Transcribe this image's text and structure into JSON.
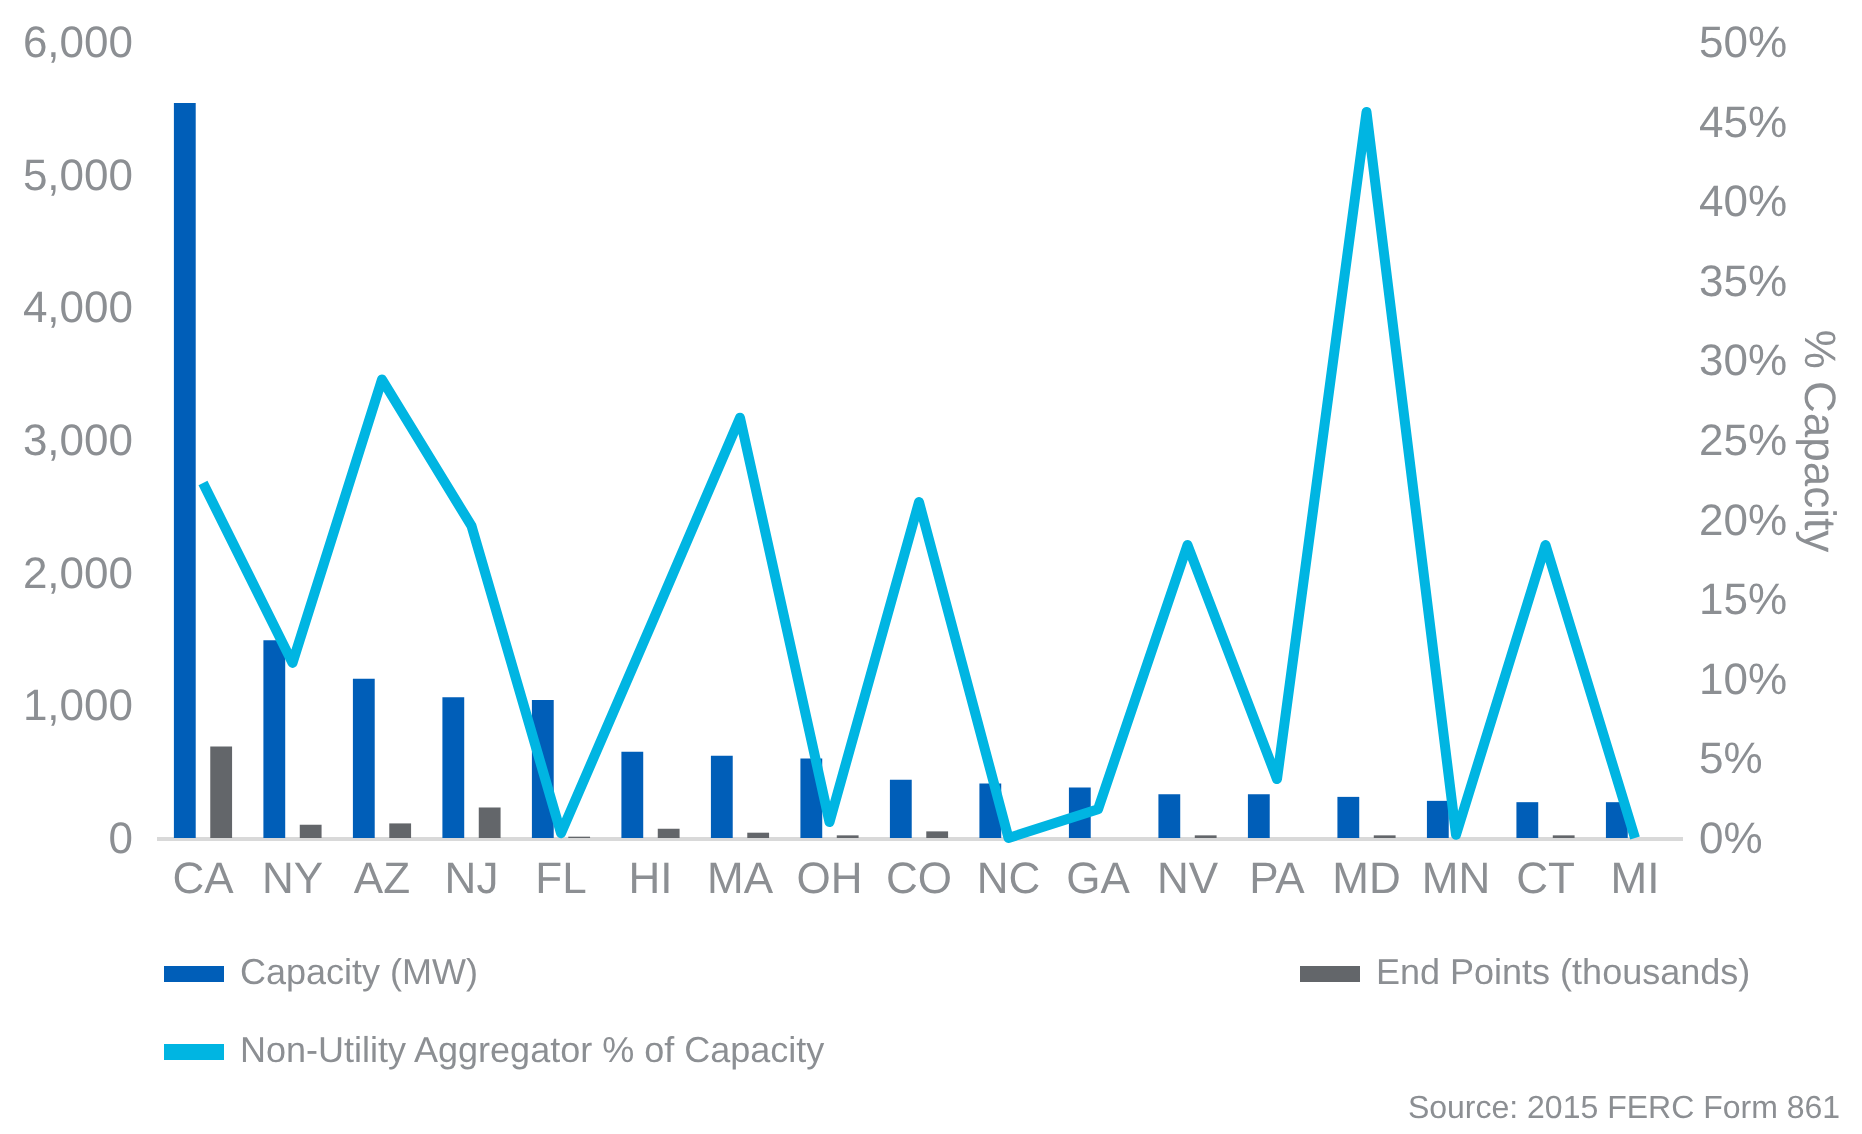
{
  "chart_data": {
    "type": "bar",
    "ylabel": null,
    "y2label": "% Capacity",
    "categories": [
      "CA",
      "NY",
      "AZ",
      "NJ",
      "FL",
      "HI",
      "MA",
      "OH",
      "CO",
      "NC",
      "GA",
      "NV",
      "PA",
      "MD",
      "MN",
      "CT",
      "MI"
    ],
    "series": [
      {
        "name": "Capacity (MW)",
        "color": "#005eb8",
        "values": [
          5540,
          1490,
          1200,
          1060,
          1040,
          650,
          620,
          600,
          440,
          410,
          380,
          330,
          330,
          310,
          280,
          270,
          270
        ]
      },
      {
        "name": "End Points (thousands)",
        "color": "#63666a",
        "values": [
          690,
          100,
          110,
          230,
          10,
          70,
          40,
          20,
          50,
          0,
          0,
          20,
          0,
          20,
          0,
          20,
          0
        ]
      },
      {
        "name": "Non-Utility Aggregator % of Capacity",
        "color": "#00b5e2",
        "type": "line",
        "axis": "y2",
        "values": [
          22.3,
          11.0,
          28.8,
          19.6,
          0.3,
          13.3,
          26.4,
          1.0,
          21.1,
          0,
          1.8,
          18.4,
          3.7,
          45.6,
          0.2,
          18.4,
          0
        ]
      }
    ],
    "ylim": [
      0,
      6000
    ],
    "yticks": [
      0,
      {
        "value": 1000,
        "label": "1,000"
      },
      {
        "value": 2000,
        "label": "2,000"
      },
      {
        "value": 3000,
        "label": "3,000"
      },
      {
        "value": 4000,
        "label": "4,000"
      },
      {
        "value": 5000,
        "label": "5,000"
      },
      {
        "value": 6000,
        "label": "6,000"
      }
    ],
    "y2lim": [
      0,
      50
    ],
    "y2ticks": [
      {
        "value": 0,
        "label": "0%"
      },
      {
        "value": 5,
        "label": "5%"
      },
      {
        "value": 10,
        "label": "10%"
      },
      {
        "value": 15,
        "label": "15%"
      },
      {
        "value": 20,
        "label": "20%"
      },
      {
        "value": 25,
        "label": "25%"
      },
      {
        "value": 30,
        "label": "30%"
      },
      {
        "value": 35,
        "label": "35%"
      },
      {
        "value": 40,
        "label": "40%"
      },
      {
        "value": 45,
        "label": "45%"
      },
      {
        "value": 50,
        "label": "50%"
      }
    ],
    "grid": false,
    "legend": "bottom",
    "marker": "none",
    "line_style": "solid",
    "annotations": [
      "Source: 2015 FERC Form 861"
    ]
  }
}
